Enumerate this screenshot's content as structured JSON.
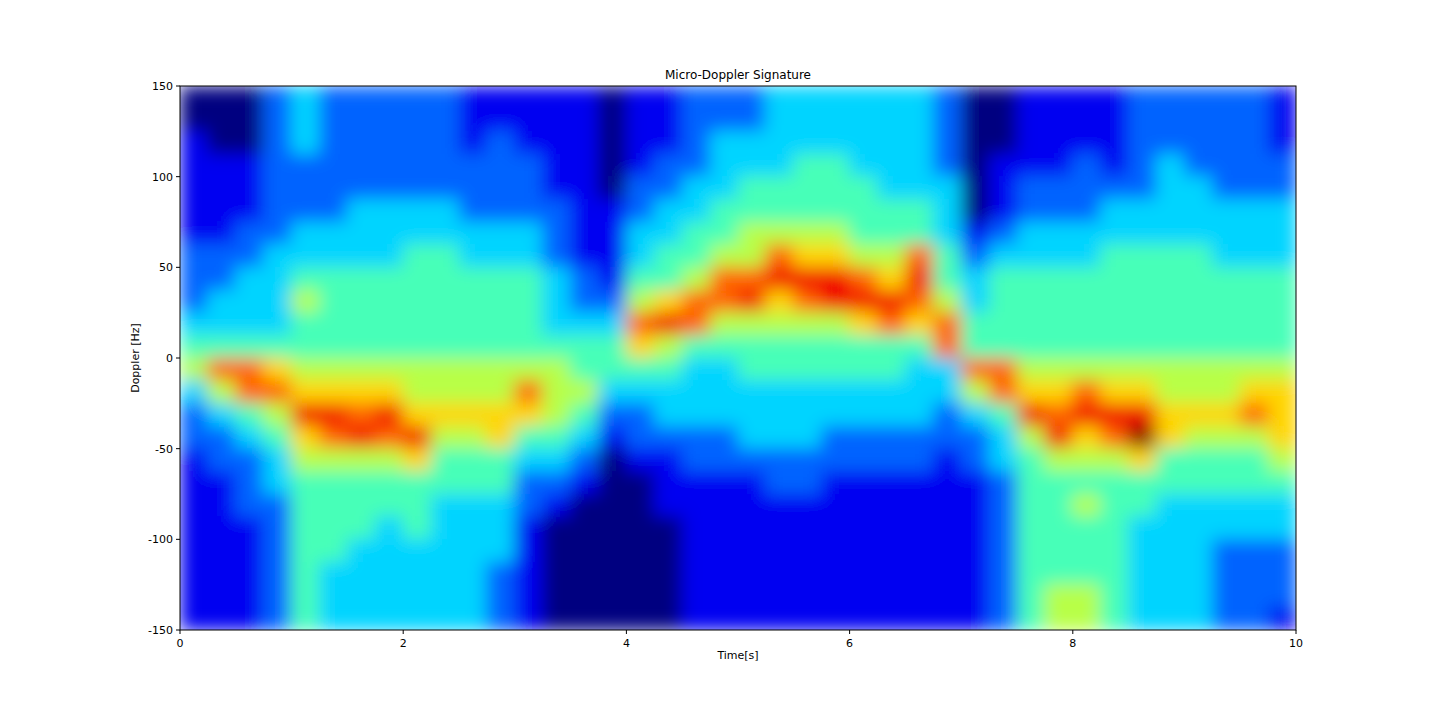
{
  "chart_data": {
    "type": "heatmap",
    "title": "Micro-Doppler Signature",
    "x_label": "Time[s]",
    "y_label": "Doppler [Hz]",
    "color": "jet",
    "zlim": [
      1,
      10
    ],
    "xlim": [
      0,
      10
    ],
    "ylim": [
      -150,
      150
    ],
    "xticks": [
      0,
      2,
      4,
      6,
      8,
      10
    ],
    "yticks": [
      -150,
      -100,
      -50,
      0,
      50,
      100,
      150
    ],
    "x": [
      0.125,
      0.375,
      0.625,
      0.875,
      1.125,
      1.375,
      1.625,
      1.875,
      2.125,
      2.375,
      2.625,
      2.875,
      3.125,
      3.375,
      3.625,
      3.875,
      4.125,
      4.375,
      4.625,
      4.875,
      5.125,
      5.375,
      5.625,
      5.875,
      6.125,
      6.375,
      6.625,
      6.875,
      7.125,
      7.375,
      7.625,
      7.875,
      8.125,
      8.375,
      8.625,
      8.875,
      9.125,
      9.375,
      9.625,
      9.875
    ],
    "y": [
      143.75,
      131.25,
      118.75,
      106.25,
      93.75,
      81.25,
      68.75,
      56.25,
      43.75,
      31.25,
      18.75,
      6.25,
      -6.25,
      -18.75,
      -31.25,
      -43.75,
      -56.25,
      -68.75,
      -81.25,
      -93.75,
      -106.25,
      -118.75,
      -131.25,
      -143.75
    ],
    "cells": [
      [
        1,
        1,
        2,
        2,
        2,
        2,
        2,
        3,
        3,
        3,
        4,
        5,
        6,
        4,
        3,
        3,
        2,
        2,
        2,
        2,
        2,
        2,
        2,
        2
      ],
      [
        1,
        1,
        1,
        2,
        2,
        2,
        2,
        3,
        3,
        4,
        4,
        5,
        8,
        6,
        4,
        3,
        3,
        2,
        2,
        2,
        2,
        2,
        2,
        2
      ],
      [
        1,
        1,
        1,
        2,
        2,
        2,
        3,
        3,
        4,
        4,
        4,
        5,
        8,
        8,
        5,
        4,
        3,
        3,
        3,
        2,
        2,
        2,
        2,
        2
      ],
      [
        3,
        3,
        3,
        3,
        3,
        3,
        3,
        4,
        4,
        4,
        4,
        5,
        7,
        8,
        6,
        5,
        4,
        4,
        3,
        3,
        3,
        3,
        3,
        3
      ],
      [
        4,
        4,
        4,
        3,
        3,
        3,
        4,
        4,
        5,
        6,
        5,
        5,
        6,
        7,
        9,
        7,
        6,
        5,
        5,
        5,
        5,
        5,
        5,
        5
      ],
      [
        3,
        3,
        3,
        3,
        3,
        3,
        4,
        4,
        5,
        5,
        5,
        5,
        6,
        7,
        9,
        8,
        6,
        5,
        5,
        5,
        5,
        4,
        4,
        4
      ],
      [
        3,
        3,
        3,
        3,
        3,
        4,
        4,
        4,
        5,
        5,
        5,
        5,
        6,
        7,
        8,
        9,
        6,
        5,
        5,
        5,
        4,
        4,
        4,
        4
      ],
      [
        3,
        3,
        3,
        3,
        3,
        4,
        4,
        4,
        5,
        5,
        5,
        5,
        6,
        7,
        9,
        8,
        6,
        5,
        5,
        4,
        4,
        4,
        4,
        4
      ],
      [
        3,
        3,
        3,
        3,
        3,
        4,
        4,
        5,
        5,
        5,
        5,
        5,
        6,
        6,
        7,
        9,
        7,
        5,
        5,
        5,
        4,
        4,
        4,
        4
      ],
      [
        3,
        3,
        3,
        3,
        3,
        4,
        4,
        5,
        5,
        5,
        5,
        5,
        6,
        6,
        7,
        6,
        5,
        5,
        4,
        4,
        4,
        4,
        4,
        4
      ],
      [
        2,
        2,
        2,
        3,
        3,
        3,
        4,
        4,
        5,
        5,
        5,
        5,
        6,
        6,
        7,
        6,
        5,
        5,
        4,
        4,
        4,
        4,
        4,
        4
      ],
      [
        2,
        2,
        3,
        3,
        3,
        3,
        4,
        4,
        5,
        5,
        5,
        5,
        6,
        6,
        7,
        7,
        5,
        5,
        4,
        4,
        4,
        3,
        3,
        3
      ],
      [
        2,
        2,
        2,
        3,
        3,
        3,
        4,
        4,
        5,
        5,
        5,
        5,
        6,
        8,
        7,
        5,
        4,
        3,
        3,
        2,
        2,
        2,
        2,
        2
      ],
      [
        2,
        2,
        2,
        2,
        2,
        3,
        3,
        3,
        4,
        4,
        4,
        5,
        6,
        6,
        6,
        5,
        4,
        3,
        2,
        1,
        1,
        1,
        1,
        1
      ],
      [
        2,
        2,
        2,
        2,
        2,
        2,
        2,
        2,
        3,
        3,
        4,
        5,
        5,
        6,
        5,
        4,
        3,
        2,
        1,
        1,
        1,
        1,
        1,
        1
      ],
      [
        1,
        1,
        1,
        1,
        1,
        2,
        2,
        2,
        2,
        3,
        4,
        5,
        5,
        4,
        3,
        2,
        1,
        1,
        1,
        1,
        1,
        1,
        1,
        1
      ],
      [
        2,
        2,
        2,
        2,
        3,
        3,
        4,
        4,
        5,
        6,
        8,
        7,
        5,
        4,
        3,
        3,
        2,
        1,
        1,
        1,
        1,
        1,
        1,
        1
      ],
      [
        2,
        2,
        2,
        3,
        3,
        4,
        4,
        5,
        5,
        7,
        9,
        6,
        5,
        4,
        4,
        3,
        2,
        2,
        2,
        1,
        1,
        1,
        1,
        1
      ],
      [
        3,
        3,
        3,
        3,
        4,
        4,
        5,
        5,
        6,
        8,
        8,
        5,
        4,
        4,
        4,
        3,
        3,
        2,
        2,
        2,
        2,
        2,
        2,
        2
      ],
      [
        3,
        3,
        4,
        4,
        4,
        5,
        5,
        6,
        8,
        8,
        6,
        5,
        4,
        4,
        4,
        3,
        3,
        2,
        2,
        2,
        2,
        2,
        2,
        2
      ],
      [
        3,
        3,
        4,
        4,
        5,
        5,
        6,
        6,
        8,
        9,
        6,
        5,
        5,
        4,
        4,
        4,
        3,
        2,
        2,
        2,
        2,
        2,
        2,
        2
      ],
      [
        4,
        4,
        4,
        4,
        5,
        5,
        6,
        8,
        9,
        7,
        6,
        5,
        5,
        4,
        4,
        4,
        3,
        3,
        2,
        2,
        2,
        2,
        2,
        2
      ],
      [
        4,
        4,
        4,
        5,
        5,
        5,
        6,
        7,
        9,
        8,
        6,
        5,
        5,
        4,
        4,
        4,
        3,
        3,
        2,
        2,
        2,
        2,
        2,
        2
      ],
      [
        4,
        4,
        4,
        5,
        5,
        5,
        6,
        7,
        9,
        9,
        6,
        5,
        5,
        4,
        4,
        3,
        3,
        2,
        2,
        2,
        2,
        2,
        2,
        2
      ],
      [
        4,
        4,
        4,
        4,
        5,
        5,
        5,
        6,
        8,
        9,
        7,
        5,
        5,
        4,
        4,
        3,
        3,
        2,
        2,
        2,
        2,
        2,
        2,
        2
      ],
      [
        4,
        4,
        4,
        4,
        4,
        5,
        5,
        6,
        7,
        9,
        8,
        5,
        5,
        4,
        4,
        3,
        3,
        2,
        2,
        2,
        2,
        2,
        2,
        2
      ],
      [
        4,
        4,
        4,
        4,
        4,
        5,
        5,
        8,
        9,
        8,
        7,
        5,
        4,
        4,
        4,
        3,
        3,
        2,
        2,
        2,
        2,
        2,
        2,
        2
      ],
      [
        3,
        3,
        3,
        3,
        4,
        4,
        4,
        5,
        5,
        6,
        8,
        8,
        4,
        4,
        3,
        3,
        2,
        2,
        2,
        2,
        2,
        2,
        2,
        2
      ],
      [
        1,
        1,
        1,
        1,
        1,
        1,
        2,
        3,
        4,
        4,
        5,
        5,
        8,
        6,
        4,
        3,
        3,
        2,
        2,
        2,
        2,
        2,
        2,
        2
      ],
      [
        1,
        1,
        1,
        2,
        2,
        2,
        3,
        4,
        5,
        5,
        5,
        5,
        8,
        8,
        5,
        4,
        4,
        3,
        3,
        3,
        3,
        3,
        3,
        3
      ],
      [
        2,
        2,
        2,
        2,
        3,
        3,
        4,
        4,
        5,
        5,
        5,
        5,
        6,
        7,
        9,
        6,
        5,
        5,
        5,
        5,
        5,
        5,
        5,
        5
      ],
      [
        2,
        2,
        2,
        2,
        3,
        3,
        4,
        4,
        5,
        5,
        5,
        5,
        6,
        7,
        8,
        9,
        6,
        5,
        5,
        5,
        5,
        5,
        6,
        6
      ],
      [
        2,
        2,
        2,
        3,
        3,
        3,
        4,
        4,
        5,
        5,
        5,
        5,
        6,
        8,
        9,
        7,
        6,
        5,
        6,
        5,
        5,
        5,
        6,
        6
      ],
      [
        2,
        2,
        2,
        2,
        3,
        4,
        4,
        5,
        5,
        5,
        5,
        5,
        6,
        7,
        9,
        8,
        6,
        5,
        5,
        5,
        5,
        5,
        5,
        5
      ],
      [
        3,
        3,
        3,
        3,
        3,
        4,
        4,
        5,
        5,
        5,
        5,
        5,
        6,
        7,
        9,
        10,
        7,
        5,
        5,
        4,
        4,
        4,
        4,
        4
      ],
      [
        3,
        3,
        3,
        4,
        4,
        4,
        4,
        5,
        5,
        5,
        5,
        5,
        6,
        6,
        7,
        7,
        5,
        5,
        4,
        4,
        4,
        4,
        4,
        4
      ],
      [
        3,
        3,
        3,
        3,
        4,
        4,
        4,
        5,
        5,
        5,
        5,
        5,
        6,
        6,
        7,
        6,
        5,
        5,
        4,
        4,
        4,
        4,
        4,
        4
      ],
      [
        3,
        3,
        3,
        3,
        3,
        4,
        4,
        4,
        5,
        5,
        5,
        5,
        6,
        6,
        7,
        6,
        5,
        5,
        4,
        4,
        3,
        3,
        3,
        3
      ],
      [
        3,
        3,
        3,
        3,
        3,
        4,
        4,
        4,
        5,
        5,
        5,
        5,
        6,
        7,
        8,
        6,
        5,
        5,
        4,
        4,
        3,
        3,
        3,
        3
      ],
      [
        2,
        2,
        2,
        3,
        3,
        4,
        4,
        4,
        5,
        5,
        5,
        5,
        6,
        7,
        7,
        7,
        6,
        5,
        4,
        4,
        3,
        3,
        3,
        2
      ]
    ]
  }
}
